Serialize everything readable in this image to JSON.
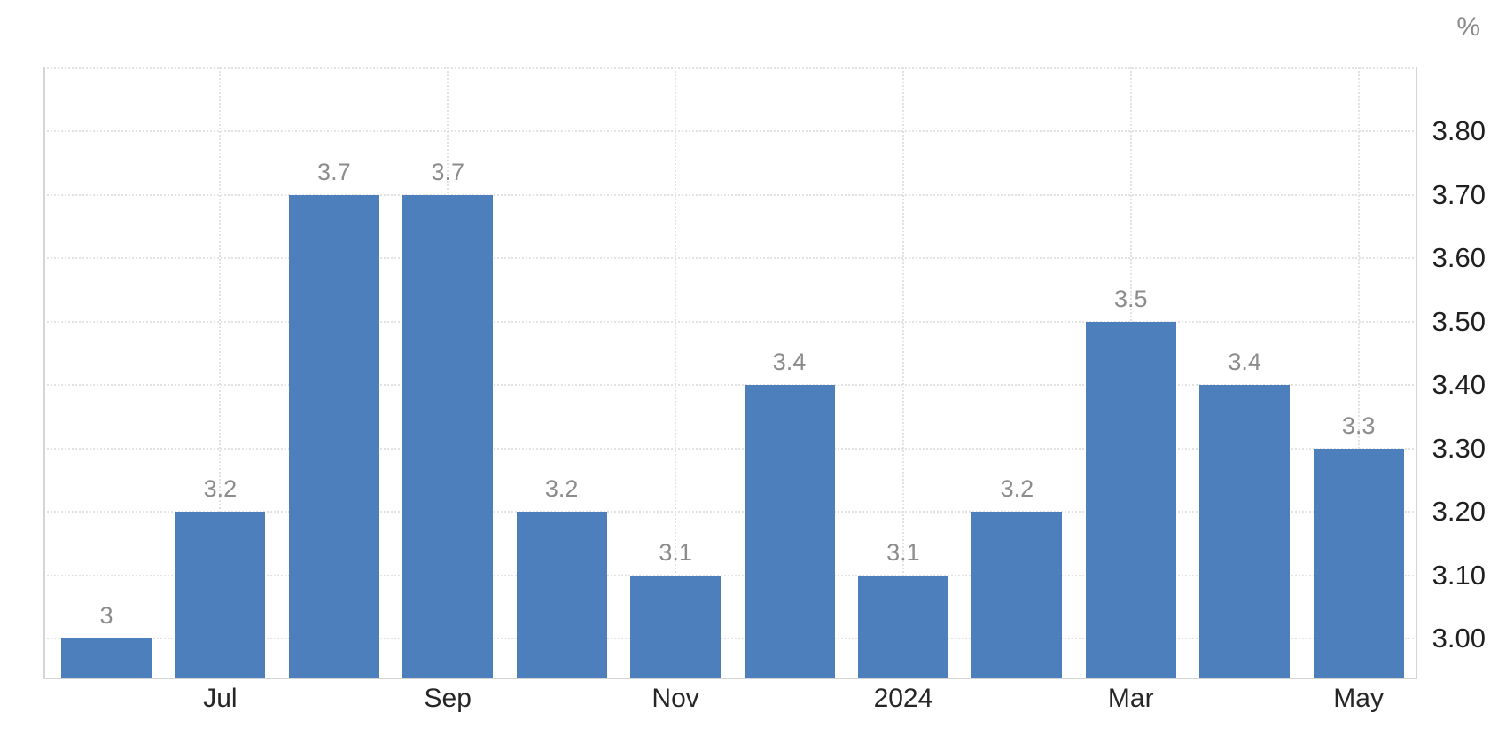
{
  "chart_data": {
    "type": "bar",
    "title": "",
    "x_tick_labels": [
      "",
      "Jul",
      "",
      "Sep",
      "",
      "Nov",
      "",
      "2024",
      "",
      "Mar",
      "",
      "May"
    ],
    "values": [
      3,
      3.2,
      3.7,
      3.7,
      3.2,
      3.1,
      3.4,
      3.1,
      3.2,
      3.5,
      3.4,
      3.3
    ],
    "bar_value_labels": [
      "3",
      "3.2",
      "3.7",
      "3.7",
      "3.2",
      "3.1",
      "3.4",
      "3.1",
      "3.2",
      "3.5",
      "3.4",
      "3.3"
    ],
    "y_axis": {
      "side": "right",
      "unit": "%",
      "tick_labels": [
        "3.80",
        "3.70",
        "3.60",
        "3.50",
        "3.40",
        "3.30",
        "3.20",
        "3.10",
        "3.00"
      ],
      "tick_values": [
        3.8,
        3.7,
        3.6,
        3.5,
        3.4,
        3.3,
        3.2,
        3.1,
        3.0
      ],
      "min": 2.94,
      "max": 3.9,
      "gridline_step": 0.1
    },
    "grid": {
      "horizontal": true,
      "vertical_at_ticks": true
    },
    "legend": null,
    "colors": {
      "bar": "#4d7fbc",
      "value_label": "#8c8c8c",
      "x_label": "#262626",
      "y_label": "#1f1f1f",
      "unit_label": "#8a8a8a",
      "gridline": "#e2e2e2",
      "axis_line": "#d5d5d5",
      "background": "#ffffff"
    }
  }
}
